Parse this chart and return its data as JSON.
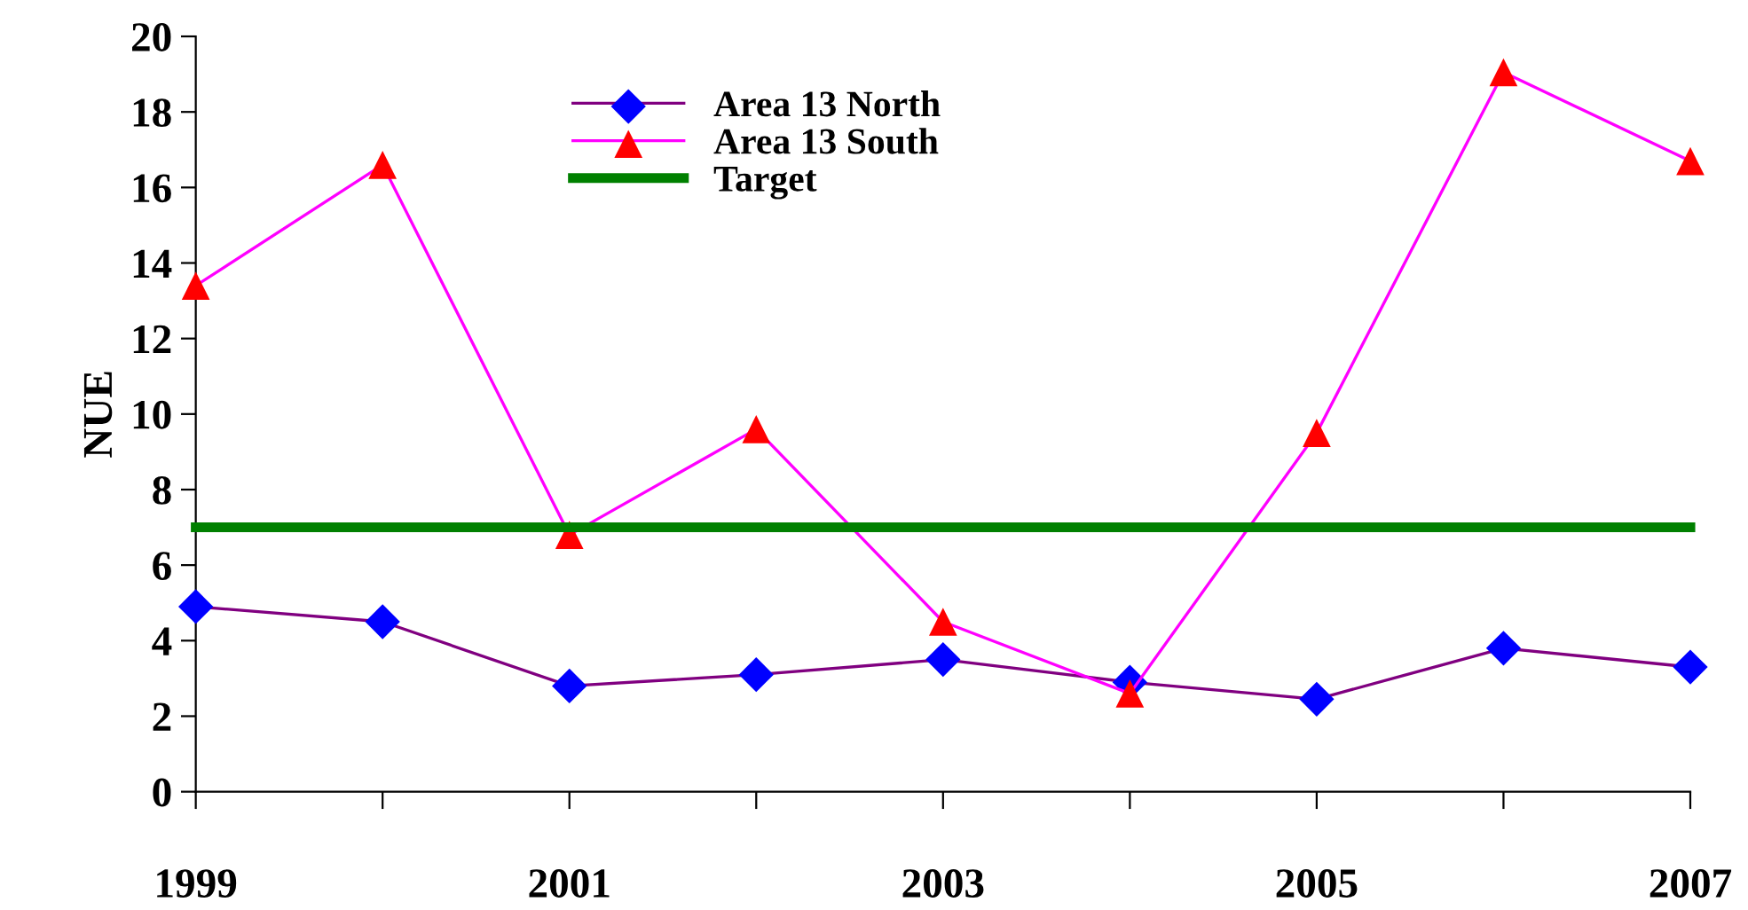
{
  "chart_data": {
    "type": "line",
    "ylabel": "NUE",
    "x": [
      1999,
      2000,
      2001,
      2002,
      2003,
      2004,
      2005,
      2006,
      2007
    ],
    "series": [
      {
        "name": "Area 13 North",
        "color": "#800080",
        "marker": "diamond",
        "colors": [
          "#0000ff",
          "#0000ff",
          "#0000ff",
          "#0000ff",
          "#0000ff",
          "#0000ff",
          "#0000ff",
          "#0000ff",
          "#0000ff"
        ],
        "values": [
          4.9,
          4.5,
          2.8,
          3.1,
          3.5,
          2.9,
          2.45,
          3.8,
          3.3
        ]
      },
      {
        "name": "Area 13 South",
        "color": "#ff00ff",
        "marker": "triangle",
        "colors": [
          "#ff0000",
          "#ff0000",
          "#ff0000",
          "#ff0000",
          "#ff0000",
          "#ff0000",
          "#ff0000",
          "#ff0000",
          "#ff0000"
        ],
        "values": [
          13.4,
          16.6,
          6.8,
          9.6,
          4.5,
          2.6,
          9.5,
          19.05,
          16.7
        ]
      },
      {
        "name": "Target",
        "color": "#008000",
        "marker": "none",
        "values": [
          7,
          7,
          7,
          7,
          7,
          7,
          7,
          7,
          7
        ]
      }
    ],
    "xlim": [
      1999,
      2007
    ],
    "xticks": [
      1999,
      {
        "value": 2000,
        "label": null
      },
      2001,
      {
        "value": 2002,
        "label": null
      },
      2003,
      {
        "value": 2004,
        "label": null
      },
      2005,
      {
        "value": 2006,
        "label": null
      },
      2007
    ],
    "ylim": [
      0,
      20
    ],
    "yticks": [
      0,
      2,
      4,
      6,
      8,
      10,
      12,
      14,
      16,
      18,
      20
    ],
    "grid": false,
    "legend": "top",
    "line_style": "solid"
  }
}
